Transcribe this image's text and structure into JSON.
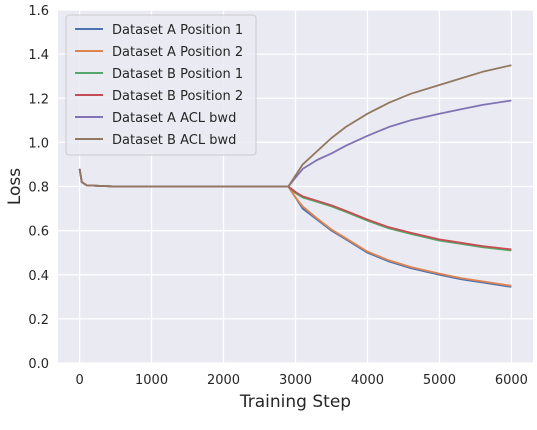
{
  "chart_data": {
    "type": "line",
    "xlabel": "Training Step",
    "ylabel": "Loss",
    "xlim": [
      -300,
      6300
    ],
    "ylim": [
      0.0,
      1.6
    ],
    "xticks": [
      0,
      1000,
      2000,
      3000,
      4000,
      5000,
      6000
    ],
    "yticks": [
      0.0,
      0.2,
      0.4,
      0.6,
      0.8,
      1.0,
      1.2,
      1.4,
      1.6
    ],
    "xtick_labels": [
      "0",
      "1000",
      "2000",
      "3000",
      "4000",
      "5000",
      "6000"
    ],
    "ytick_labels": [
      "0.0",
      "0.2",
      "0.4",
      "0.6",
      "0.8",
      "1.0",
      "1.2",
      "1.4",
      "1.6"
    ],
    "grid": true,
    "legend_position": "top-left",
    "series": [
      {
        "name": "Dataset A Position 1",
        "color": "#4c72b0",
        "points": [
          [
            0,
            0.88
          ],
          [
            30,
            0.82
          ],
          [
            100,
            0.805
          ],
          [
            500,
            0.8
          ],
          [
            1500,
            0.8
          ],
          [
            2500,
            0.8
          ],
          [
            2900,
            0.8
          ],
          [
            3000,
            0.75
          ],
          [
            3100,
            0.7
          ],
          [
            3300,
            0.65
          ],
          [
            3500,
            0.6
          ],
          [
            3700,
            0.56
          ],
          [
            4000,
            0.5
          ],
          [
            4300,
            0.46
          ],
          [
            4600,
            0.43
          ],
          [
            5000,
            0.4
          ],
          [
            5300,
            0.38
          ],
          [
            5600,
            0.365
          ],
          [
            6000,
            0.345
          ]
        ]
      },
      {
        "name": "Dataset A Position 2",
        "color": "#dd8452",
        "points": [
          [
            0,
            0.88
          ],
          [
            30,
            0.82
          ],
          [
            100,
            0.805
          ],
          [
            500,
            0.8
          ],
          [
            1500,
            0.8
          ],
          [
            2500,
            0.8
          ],
          [
            2900,
            0.8
          ],
          [
            3000,
            0.75
          ],
          [
            3100,
            0.71
          ],
          [
            3300,
            0.655
          ],
          [
            3500,
            0.605
          ],
          [
            3700,
            0.565
          ],
          [
            4000,
            0.505
          ],
          [
            4300,
            0.465
          ],
          [
            4600,
            0.435
          ],
          [
            5000,
            0.405
          ],
          [
            5300,
            0.385
          ],
          [
            5600,
            0.37
          ],
          [
            6000,
            0.35
          ]
        ]
      },
      {
        "name": "Dataset B Position 1",
        "color": "#55a868",
        "points": [
          [
            0,
            0.88
          ],
          [
            30,
            0.82
          ],
          [
            100,
            0.805
          ],
          [
            500,
            0.8
          ],
          [
            1500,
            0.8
          ],
          [
            2500,
            0.8
          ],
          [
            2900,
            0.8
          ],
          [
            3000,
            0.77
          ],
          [
            3100,
            0.75
          ],
          [
            3300,
            0.73
          ],
          [
            3500,
            0.71
          ],
          [
            3700,
            0.685
          ],
          [
            4000,
            0.645
          ],
          [
            4300,
            0.61
          ],
          [
            4600,
            0.585
          ],
          [
            5000,
            0.555
          ],
          [
            5300,
            0.54
          ],
          [
            5600,
            0.525
          ],
          [
            6000,
            0.51
          ]
        ]
      },
      {
        "name": "Dataset B Position 2",
        "color": "#c44e52",
        "points": [
          [
            0,
            0.88
          ],
          [
            30,
            0.82
          ],
          [
            100,
            0.805
          ],
          [
            500,
            0.8
          ],
          [
            1500,
            0.8
          ],
          [
            2500,
            0.8
          ],
          [
            2900,
            0.8
          ],
          [
            3000,
            0.775
          ],
          [
            3100,
            0.755
          ],
          [
            3300,
            0.735
          ],
          [
            3500,
            0.715
          ],
          [
            3700,
            0.69
          ],
          [
            4000,
            0.65
          ],
          [
            4300,
            0.615
          ],
          [
            4600,
            0.59
          ],
          [
            5000,
            0.56
          ],
          [
            5300,
            0.545
          ],
          [
            5600,
            0.53
          ],
          [
            6000,
            0.515
          ]
        ]
      },
      {
        "name": "Dataset A ACL bwd",
        "color": "#8172b3",
        "points": [
          [
            0,
            0.88
          ],
          [
            30,
            0.82
          ],
          [
            100,
            0.805
          ],
          [
            500,
            0.8
          ],
          [
            1500,
            0.8
          ],
          [
            2500,
            0.8
          ],
          [
            2900,
            0.8
          ],
          [
            3000,
            0.84
          ],
          [
            3100,
            0.88
          ],
          [
            3300,
            0.92
          ],
          [
            3500,
            0.95
          ],
          [
            3700,
            0.985
          ],
          [
            4000,
            1.03
          ],
          [
            4300,
            1.07
          ],
          [
            4600,
            1.1
          ],
          [
            5000,
            1.13
          ],
          [
            5300,
            1.15
          ],
          [
            5600,
            1.17
          ],
          [
            6000,
            1.19
          ]
        ]
      },
      {
        "name": "Dataset B ACL bwd",
        "color": "#937860",
        "points": [
          [
            0,
            0.88
          ],
          [
            30,
            0.82
          ],
          [
            100,
            0.805
          ],
          [
            500,
            0.8
          ],
          [
            1500,
            0.8
          ],
          [
            2500,
            0.8
          ],
          [
            2900,
            0.8
          ],
          [
            3000,
            0.85
          ],
          [
            3100,
            0.9
          ],
          [
            3300,
            0.96
          ],
          [
            3500,
            1.02
          ],
          [
            3700,
            1.07
          ],
          [
            4000,
            1.13
          ],
          [
            4300,
            1.18
          ],
          [
            4600,
            1.22
          ],
          [
            5000,
            1.26
          ],
          [
            5300,
            1.29
          ],
          [
            5600,
            1.32
          ],
          [
            6000,
            1.35
          ]
        ]
      }
    ]
  }
}
